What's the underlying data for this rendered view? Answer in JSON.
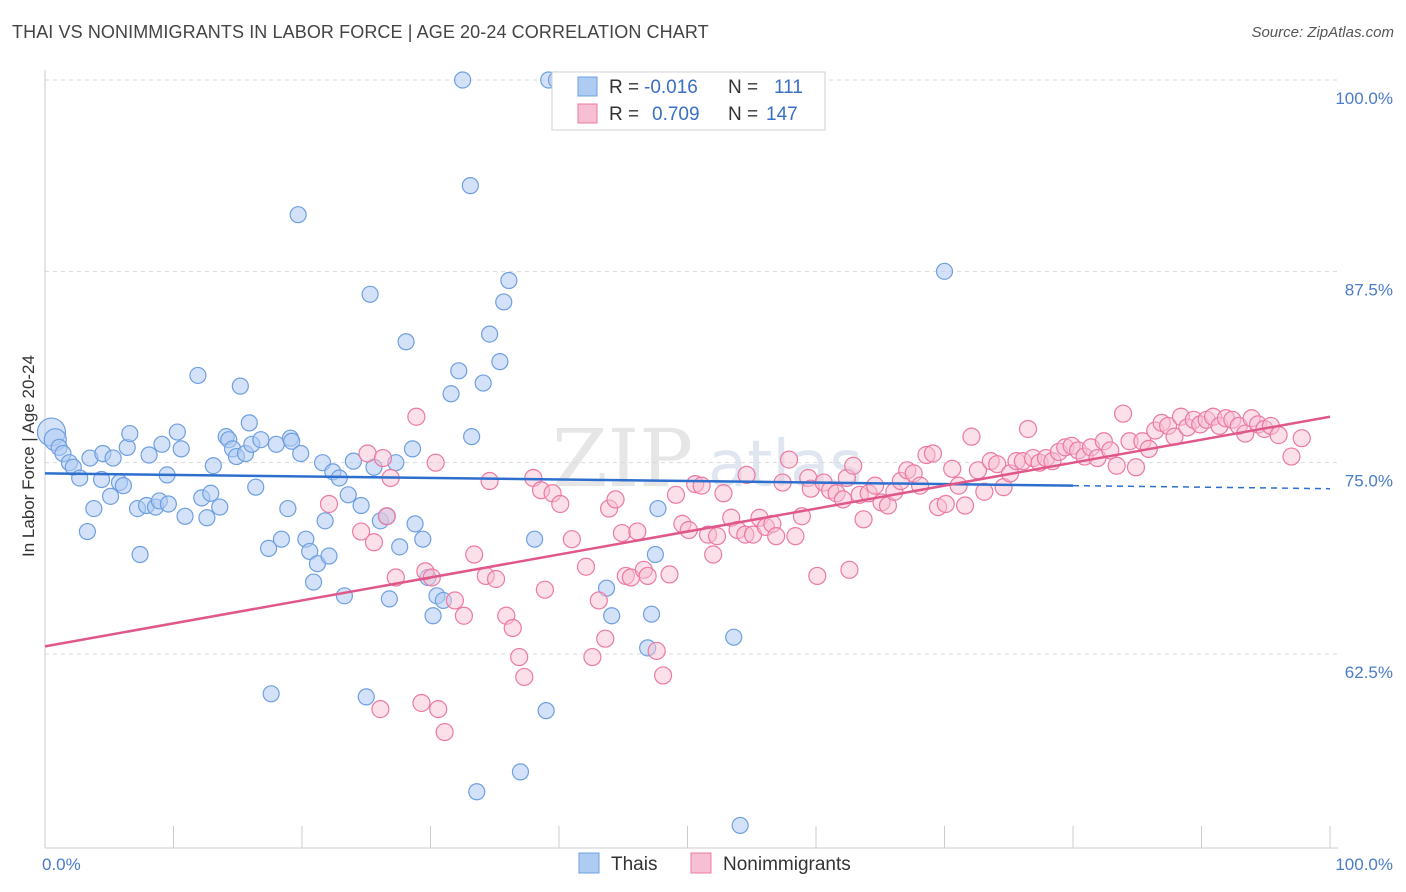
{
  "title": "THAI VS NONIMMIGRANTS IN LABOR FORCE | AGE 20-24 CORRELATION CHART",
  "source": "Source: ZipAtlas.com",
  "watermark": {
    "zip": "ZIP",
    "atlas": "atlas"
  },
  "colors": {
    "thais": "#6f9fe0",
    "thais_fill": "#aecbf2",
    "nonimmigrants": "#ec7aa3",
    "nonimmigrants_fill": "#f7bfd3",
    "blue_line": "#2e6fce",
    "pink_line": "#e0588a",
    "grid": "#d9d9d9",
    "axis_text": "#4a7cc7"
  },
  "stats": {
    "thais": {
      "r_label": "R =",
      "r_value": "-0.016",
      "n_label": "N =",
      "n_value": "111"
    },
    "nonimmigrants": {
      "r_label": "R =",
      "r_value": "0.709",
      "n_label": "N =",
      "n_value": "147"
    }
  },
  "legend": {
    "thais": "Thais",
    "nonimmigrants": "Nonimmigrants"
  },
  "chart_data": {
    "type": "scatter",
    "title": "THAI VS NONIMMIGRANTS IN LABOR FORCE | AGE 20-24 CORRELATION CHART",
    "xlabel": "",
    "ylabel": "In Labor Force | Age 20-24",
    "xlim": [
      0,
      100
    ],
    "ylim": [
      50,
      101
    ],
    "x_tick_labels": [
      "0.0%",
      "100.0%"
    ],
    "y_ticks": [
      62.5,
      75.0,
      87.5,
      100.0
    ],
    "y_tick_labels": [
      "62.5%",
      "75.0%",
      "87.5%",
      "100.0%"
    ],
    "grid": true,
    "legend_position": "bottom-center",
    "series": [
      {
        "name": "Thais",
        "trend": {
          "x": [
            0,
            80
          ],
          "y": [
            74.3,
            73.5
          ],
          "dashed_to": [
            100,
            73.3
          ]
        },
        "points": [
          [
            0.5,
            77
          ],
          [
            0.8,
            76.5
          ],
          [
            1.1,
            76
          ],
          [
            1.4,
            75.6
          ],
          [
            1.9,
            75
          ],
          [
            2.2,
            74.7
          ],
          [
            2.7,
            74
          ],
          [
            3.3,
            70.5
          ],
          [
            3.5,
            75.3
          ],
          [
            3.8,
            72
          ],
          [
            4.4,
            73.9
          ],
          [
            4.5,
            75.6
          ],
          [
            5.1,
            72.8
          ],
          [
            5.3,
            75.3
          ],
          [
            5.8,
            73.7
          ],
          [
            6.1,
            73.5
          ],
          [
            6.4,
            76
          ],
          [
            6.6,
            76.9
          ],
          [
            7.2,
            72
          ],
          [
            7.4,
            69
          ],
          [
            7.9,
            72.2
          ],
          [
            8.1,
            75.5
          ],
          [
            8.6,
            72.1
          ],
          [
            8.9,
            72.5
          ],
          [
            9.1,
            76.2
          ],
          [
            9.5,
            74.2
          ],
          [
            9.6,
            72.3
          ],
          [
            10.3,
            77
          ],
          [
            10.6,
            75.9
          ],
          [
            10.9,
            71.5
          ],
          [
            11.9,
            80.7
          ],
          [
            12.2,
            72.7
          ],
          [
            12.6,
            71.4
          ],
          [
            12.9,
            73
          ],
          [
            13.1,
            74.8
          ],
          [
            13.6,
            72.1
          ],
          [
            14.1,
            76.7
          ],
          [
            14.3,
            76.5
          ],
          [
            14.6,
            75.9
          ],
          [
            14.9,
            75.4
          ],
          [
            15.2,
            80
          ],
          [
            15.6,
            75.6
          ],
          [
            15.9,
            77.6
          ],
          [
            16.1,
            76.2
          ],
          [
            16.4,
            73.4
          ],
          [
            16.8,
            76.5
          ],
          [
            17.4,
            69.4
          ],
          [
            17.6,
            59.9
          ],
          [
            18.0,
            76.2
          ],
          [
            18.4,
            70
          ],
          [
            18.9,
            72
          ],
          [
            19.1,
            76.6
          ],
          [
            19.2,
            76.4
          ],
          [
            19.7,
            91.2
          ],
          [
            19.9,
            75.6
          ],
          [
            20.3,
            70
          ],
          [
            20.6,
            69.2
          ],
          [
            20.9,
            67.2
          ],
          [
            21.2,
            68.4
          ],
          [
            21.6,
            75
          ],
          [
            21.8,
            71.2
          ],
          [
            22.1,
            68.9
          ],
          [
            22.4,
            74.4
          ],
          [
            22.9,
            74
          ],
          [
            23.3,
            66.3
          ],
          [
            23.6,
            72.9
          ],
          [
            24,
            75.1
          ],
          [
            24.6,
            72.2
          ],
          [
            25.0,
            59.7
          ],
          [
            25.3,
            86
          ],
          [
            25.6,
            74.7
          ],
          [
            26.1,
            71.2
          ],
          [
            26.6,
            71.5
          ],
          [
            26.8,
            66.1
          ],
          [
            27.3,
            75
          ],
          [
            27.6,
            69.5
          ],
          [
            28.1,
            82.9
          ],
          [
            28.6,
            75.9
          ],
          [
            28.8,
            71
          ],
          [
            29.4,
            70
          ],
          [
            29.8,
            67.5
          ],
          [
            30.2,
            65
          ],
          [
            30.5,
            66.3
          ],
          [
            31,
            66
          ],
          [
            31.6,
            79.5
          ],
          [
            32.2,
            81
          ],
          [
            32.5,
            100
          ],
          [
            33.1,
            93.1
          ],
          [
            33.2,
            76.7
          ],
          [
            33.6,
            53.5
          ],
          [
            34.1,
            80.2
          ],
          [
            34.6,
            83.4
          ],
          [
            35.4,
            81.6
          ],
          [
            35.7,
            85.5
          ],
          [
            36.1,
            86.9
          ],
          [
            37.0,
            54.8
          ],
          [
            38.1,
            70
          ],
          [
            39.0,
            58.8
          ],
          [
            39.2,
            100
          ],
          [
            39.8,
            100
          ],
          [
            43.7,
            66.8
          ],
          [
            44.1,
            65
          ],
          [
            46.9,
            62.9
          ],
          [
            47.2,
            65.1
          ],
          [
            47.5,
            69
          ],
          [
            47.7,
            72
          ],
          [
            53.6,
            63.6
          ],
          [
            54.1,
            51.3
          ],
          [
            70.0,
            87.5
          ]
        ]
      },
      {
        "name": "Nonimmigrants",
        "trend": {
          "x": [
            0,
            100
          ],
          "y": [
            63,
            78
          ]
        },
        "points": [
          [
            22.1,
            72.3
          ],
          [
            24.6,
            70.5
          ],
          [
            25.1,
            75.6
          ],
          [
            25.6,
            69.8
          ],
          [
            26.1,
            58.9
          ],
          [
            26.3,
            75.3
          ],
          [
            26.6,
            71.5
          ],
          [
            26.9,
            74
          ],
          [
            27.3,
            67.5
          ],
          [
            28.9,
            78
          ],
          [
            29.3,
            59.3
          ],
          [
            29.6,
            67.9
          ],
          [
            30.1,
            67.5
          ],
          [
            30.4,
            75
          ],
          [
            30.6,
            58.9
          ],
          [
            31.1,
            57.4
          ],
          [
            31.9,
            66
          ],
          [
            32.6,
            65
          ],
          [
            33.4,
            69
          ],
          [
            34.3,
            67.6
          ],
          [
            34.6,
            73.8
          ],
          [
            35.1,
            67.4
          ],
          [
            35.9,
            65
          ],
          [
            36.4,
            64.2
          ],
          [
            36.9,
            62.3
          ],
          [
            37.3,
            61
          ],
          [
            38.0,
            74
          ],
          [
            38.6,
            73.2
          ],
          [
            38.9,
            66.7
          ],
          [
            39.5,
            73
          ],
          [
            40.1,
            72.3
          ],
          [
            41.0,
            70
          ],
          [
            42.1,
            68.2
          ],
          [
            42.6,
            62.3
          ],
          [
            43.1,
            66
          ],
          [
            43.6,
            63.5
          ],
          [
            43.9,
            72
          ],
          [
            44.4,
            72.6
          ],
          [
            44.9,
            70.4
          ],
          [
            45.2,
            67.6
          ],
          [
            45.6,
            67.5
          ],
          [
            46.1,
            70.5
          ],
          [
            46.6,
            68
          ],
          [
            46.9,
            67.6
          ],
          [
            47.6,
            62.7
          ],
          [
            48.1,
            61.1
          ],
          [
            48.6,
            67.7
          ],
          [
            49.1,
            72.9
          ],
          [
            49.6,
            71
          ],
          [
            50.1,
            70.6
          ],
          [
            50.6,
            73.6
          ],
          [
            51.1,
            73.5
          ],
          [
            51.6,
            70.3
          ],
          [
            52.0,
            69
          ],
          [
            52.3,
            70.2
          ],
          [
            52.8,
            73
          ],
          [
            53.4,
            71.4
          ],
          [
            53.9,
            70.6
          ],
          [
            54.5,
            70.3
          ],
          [
            54.6,
            74.2
          ],
          [
            55.1,
            70.3
          ],
          [
            55.6,
            71.4
          ],
          [
            56.1,
            70.8
          ],
          [
            56.6,
            71
          ],
          [
            56.9,
            70.2
          ],
          [
            57.4,
            73.7
          ],
          [
            57.9,
            75.2
          ],
          [
            58.4,
            70.2
          ],
          [
            58.9,
            71.5
          ],
          [
            59.4,
            74
          ],
          [
            59.6,
            73.3
          ],
          [
            60.1,
            67.6
          ],
          [
            60.6,
            73.7
          ],
          [
            61.1,
            73.2
          ],
          [
            61.6,
            73
          ],
          [
            62.1,
            72.6
          ],
          [
            62.4,
            74
          ],
          [
            62.6,
            68
          ],
          [
            62.9,
            74.8
          ],
          [
            63.4,
            72.9
          ],
          [
            63.7,
            71.3
          ],
          [
            64.1,
            73
          ],
          [
            64.6,
            73.5
          ],
          [
            65.1,
            72.4
          ],
          [
            65.6,
            72.2
          ],
          [
            66.1,
            73.1
          ],
          [
            66.6,
            73.8
          ],
          [
            67.1,
            74.5
          ],
          [
            67.6,
            74.3
          ],
          [
            68.1,
            73.5
          ],
          [
            68.6,
            75.5
          ],
          [
            69.1,
            75.6
          ],
          [
            69.5,
            72.1
          ],
          [
            70.1,
            72.3
          ],
          [
            70.6,
            74.6
          ],
          [
            71.1,
            73.5
          ],
          [
            71.6,
            72.2
          ],
          [
            72.1,
            76.7
          ],
          [
            72.6,
            74.5
          ],
          [
            73.1,
            73.1
          ],
          [
            73.6,
            75.1
          ],
          [
            74.1,
            74.9
          ],
          [
            74.6,
            73.4
          ],
          [
            75.1,
            74.3
          ],
          [
            75.6,
            75.1
          ],
          [
            76.1,
            75.1
          ],
          [
            76.5,
            77.2
          ],
          [
            76.9,
            75.3
          ],
          [
            77.4,
            75
          ],
          [
            77.9,
            75.3
          ],
          [
            78.4,
            75.1
          ],
          [
            78.9,
            75.7
          ],
          [
            79.4,
            76
          ],
          [
            79.9,
            76.1
          ],
          [
            80.4,
            75.8
          ],
          [
            80.9,
            75.4
          ],
          [
            81.4,
            76
          ],
          [
            81.9,
            75.3
          ],
          [
            82.4,
            76.4
          ],
          [
            82.9,
            75.8
          ],
          [
            83.4,
            74.8
          ],
          [
            83.9,
            78.2
          ],
          [
            84.4,
            76.4
          ],
          [
            84.9,
            74.7
          ],
          [
            85.4,
            76.4
          ],
          [
            85.9,
            75.9
          ],
          [
            86.4,
            77.1
          ],
          [
            86.9,
            77.6
          ],
          [
            87.4,
            77.4
          ],
          [
            87.9,
            76.7
          ],
          [
            88.4,
            78
          ],
          [
            88.9,
            77.3
          ],
          [
            89.4,
            77.8
          ],
          [
            89.9,
            77.5
          ],
          [
            90.4,
            77.8
          ],
          [
            90.9,
            78
          ],
          [
            91.4,
            77.4
          ],
          [
            91.9,
            77.9
          ],
          [
            92.4,
            77.8
          ],
          [
            92.9,
            77.4
          ],
          [
            93.4,
            76.9
          ],
          [
            93.9,
            77.9
          ],
          [
            94.4,
            77.5
          ],
          [
            94.9,
            77.2
          ],
          [
            95.4,
            77.4
          ],
          [
            96.0,
            76.8
          ],
          [
            97.0,
            75.4
          ],
          [
            97.8,
            76.6
          ]
        ]
      }
    ]
  }
}
